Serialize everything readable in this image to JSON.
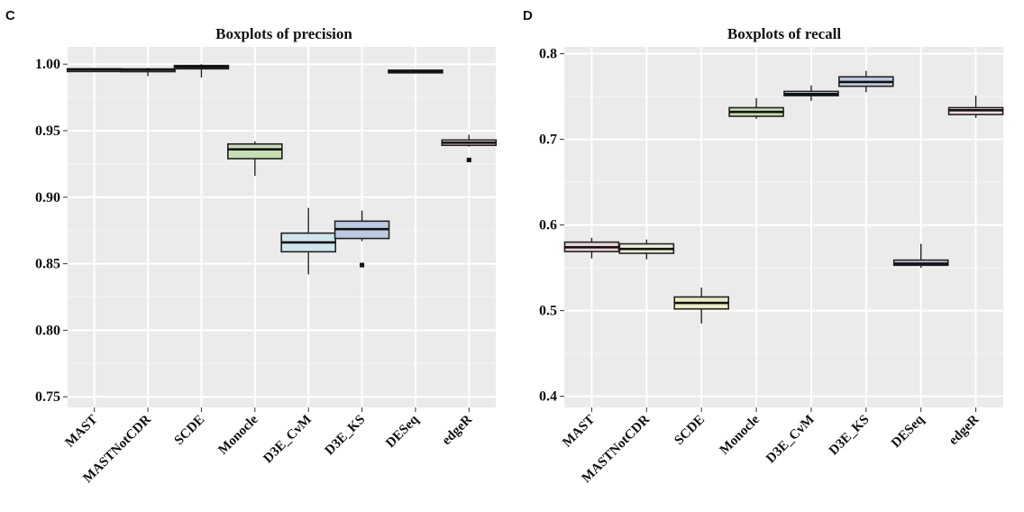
{
  "chart_data": [
    {
      "panel": "C",
      "type": "boxplot",
      "title": "Boxplots of precision",
      "xlabel": "",
      "ylabel": "",
      "ylim": [
        0.742,
        1.013
      ],
      "yticks": [
        0.75,
        0.8,
        0.85,
        0.9,
        0.95,
        1.0
      ],
      "ytick_labels": [
        "0.75",
        "0.80",
        "0.85",
        "0.90",
        "0.95",
        "1.00"
      ],
      "categories": [
        "MAST",
        "MASTNotCDR",
        "SCDE",
        "Monocle",
        "D3E_CvM",
        "D3E_KS",
        "DESeq",
        "edgeR"
      ],
      "colors": [
        "#f2d4d8",
        "#eeeed9",
        "#e4eecb",
        "#c6deb0",
        "#cfe6ed",
        "#bccbe2",
        "#bcc8e3",
        "#f0d8e6"
      ],
      "grid": true,
      "boxes": [
        {
          "q1": 0.9955,
          "median": 0.996,
          "q3": 0.9965,
          "lo": 0.995,
          "hi": 0.997,
          "outliers": []
        },
        {
          "q1": 0.9952,
          "median": 0.9958,
          "q3": 0.9964,
          "lo": 0.991,
          "hi": 0.9972,
          "outliers": []
        },
        {
          "q1": 0.9965,
          "median": 0.998,
          "q3": 0.999,
          "lo": 0.99,
          "hi": 1.0,
          "outliers": []
        },
        {
          "q1": 0.929,
          "median": 0.936,
          "q3": 0.94,
          "lo": 0.916,
          "hi": 0.942,
          "outliers": []
        },
        {
          "q1": 0.859,
          "median": 0.866,
          "q3": 0.873,
          "lo": 0.842,
          "hi": 0.892,
          "outliers": []
        },
        {
          "q1": 0.869,
          "median": 0.876,
          "q3": 0.882,
          "lo": 0.867,
          "hi": 0.89,
          "outliers": [
            0.849
          ]
        },
        {
          "q1": 0.9935,
          "median": 0.9945,
          "q3": 0.9955,
          "lo": 0.993,
          "hi": 0.996,
          "outliers": []
        },
        {
          "q1": 0.939,
          "median": 0.941,
          "q3": 0.943,
          "lo": 0.938,
          "hi": 0.947,
          "outliers": [
            0.928
          ]
        }
      ]
    },
    {
      "panel": "D",
      "type": "boxplot",
      "title": "Boxplots of recall",
      "xlabel": "",
      "ylabel": "",
      "ylim": [
        0.387,
        0.808
      ],
      "yticks": [
        0.4,
        0.5,
        0.6,
        0.7,
        0.8
      ],
      "ytick_labels": [
        "0.4",
        "0.5",
        "0.6",
        "0.7",
        "0.8"
      ],
      "categories": [
        "MAST",
        "MASTNotCDR",
        "SCDE",
        "Monocle",
        "D3E_CvM",
        "D3E_KS",
        "DESeq",
        "edgeR"
      ],
      "colors": [
        "#ecd2d6",
        "#eeeed9",
        "#ececc0",
        "#c6deb0",
        "#cfe6ed",
        "#bccbe2",
        "#bcc8e3",
        "#f0d8e6"
      ],
      "grid": true,
      "boxes": [
        {
          "q1": 0.569,
          "median": 0.574,
          "q3": 0.58,
          "lo": 0.561,
          "hi": 0.585,
          "outliers": []
        },
        {
          "q1": 0.567,
          "median": 0.572,
          "q3": 0.578,
          "lo": 0.56,
          "hi": 0.583,
          "outliers": []
        },
        {
          "q1": 0.502,
          "median": 0.509,
          "q3": 0.516,
          "lo": 0.485,
          "hi": 0.527,
          "outliers": []
        },
        {
          "q1": 0.727,
          "median": 0.732,
          "q3": 0.737,
          "lo": 0.724,
          "hi": 0.748,
          "outliers": []
        },
        {
          "q1": 0.751,
          "median": 0.753,
          "q3": 0.756,
          "lo": 0.745,
          "hi": 0.763,
          "outliers": []
        },
        {
          "q1": 0.762,
          "median": 0.767,
          "q3": 0.773,
          "lo": 0.755,
          "hi": 0.78,
          "outliers": []
        },
        {
          "q1": 0.553,
          "median": 0.555,
          "q3": 0.559,
          "lo": 0.55,
          "hi": 0.578,
          "outliers": []
        },
        {
          "q1": 0.729,
          "median": 0.734,
          "q3": 0.737,
          "lo": 0.725,
          "hi": 0.751,
          "outliers": []
        }
      ]
    }
  ]
}
